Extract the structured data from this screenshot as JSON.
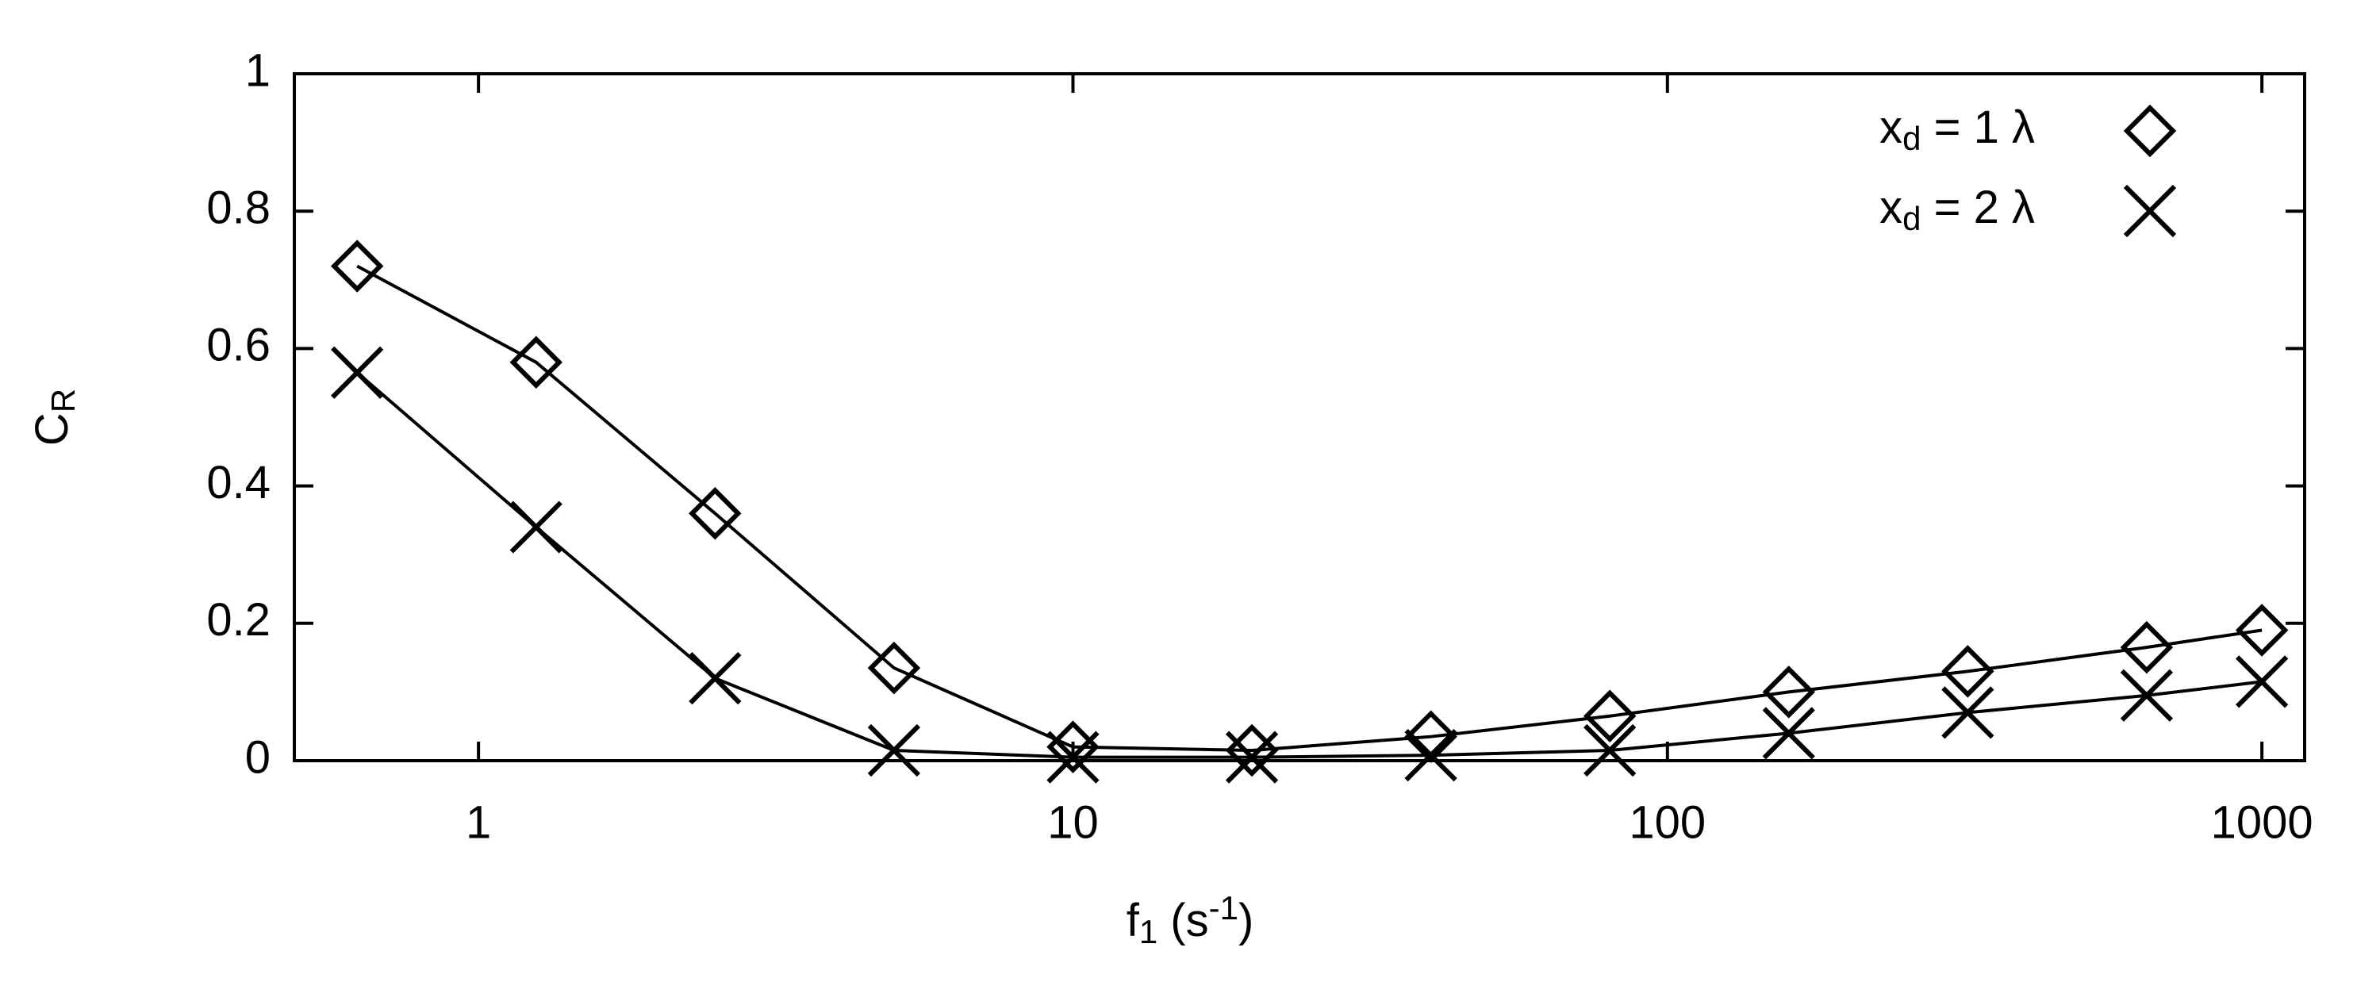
{
  "chart_data": {
    "type": "line",
    "x_label": "f1 (s-1)",
    "y_label": "CR",
    "log_x": true,
    "x": [
      0.625,
      1.25,
      2.5,
      5,
      10,
      20,
      40,
      80,
      160,
      320,
      640,
      1000
    ],
    "series": [
      {
        "name": "xd = 1 λ",
        "color": "#000000",
        "marker": "diamond",
        "values": [
          0.72,
          0.58,
          0.36,
          0.135,
          0.02,
          0.015,
          0.035,
          0.065,
          0.1,
          0.13,
          0.165,
          0.19
        ]
      },
      {
        "name": "xd = 2 λ",
        "color": "#000000",
        "marker": "cross",
        "values": [
          0.565,
          0.34,
          0.12,
          0.015,
          0.005,
          0.005,
          0.008,
          0.015,
          0.04,
          0.07,
          0.095,
          0.115
        ]
      }
    ],
    "xlim": [
      0.49,
      1180
    ],
    "xticks": [
      1,
      10,
      100,
      1000
    ],
    "ylim": [
      0,
      1
    ],
    "yticks": [
      0,
      0.2,
      0.4,
      0.6,
      0.8,
      1
    ],
    "legend": "top-right"
  }
}
